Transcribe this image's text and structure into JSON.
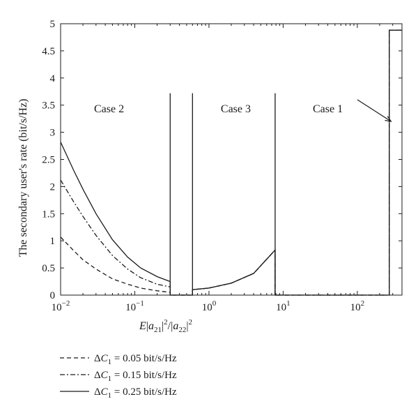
{
  "chart_data": {
    "type": "line",
    "title": "",
    "xlabel": "E|a21|^2/|a22|^2",
    "ylabel": "The secondary user's rate (bit/s/Hz)",
    "xscale": "log",
    "xlim": [
      0.01,
      400
    ],
    "ylim": [
      0,
      5
    ],
    "x_ticks": [
      {
        "value": 0.01,
        "base": "10",
        "exp": "−2"
      },
      {
        "value": 0.1,
        "base": "10",
        "exp": "−1"
      },
      {
        "value": 1,
        "base": "10",
        "exp": "0"
      },
      {
        "value": 10,
        "base": "10",
        "exp": "1"
      },
      {
        "value": 100,
        "base": "10",
        "exp": "2"
      }
    ],
    "y_ticks": [
      {
        "value": 0,
        "label": "0"
      },
      {
        "value": 0.5,
        "label": "0.5"
      },
      {
        "value": 1,
        "label": "1"
      },
      {
        "value": 1.5,
        "label": "1.5"
      },
      {
        "value": 2,
        "label": "2"
      },
      {
        "value": 2.5,
        "label": "2.5"
      },
      {
        "value": 3,
        "label": "3"
      },
      {
        "value": 3.5,
        "label": "3.5"
      },
      {
        "value": 4,
        "label": "4"
      },
      {
        "value": 4.5,
        "label": "4.5"
      },
      {
        "value": 5,
        "label": "5"
      }
    ],
    "grid": false,
    "legend_position": "below",
    "series": [
      {
        "name": "ΔC1 = 0.05 bit/s/Hz",
        "style": "dashed",
        "x": [
          0.01,
          0.015,
          0.02,
          0.03,
          0.05,
          0.08,
          0.12,
          0.2,
          0.3,
          0.3,
          0.6,
          0.6,
          1,
          2,
          4,
          7.8,
          7.8,
          270,
          270,
          400
        ],
        "y": [
          1.07,
          0.82,
          0.65,
          0.48,
          0.3,
          0.2,
          0.13,
          0.08,
          0.05,
          0.0,
          0.0,
          0.1,
          0.13,
          0.22,
          0.4,
          0.83,
          0.0,
          0.0,
          4.88,
          4.88
        ]
      },
      {
        "name": "ΔC1 = 0.15 bit/s/Hz",
        "style": "dashdot",
        "x": [
          0.01,
          0.015,
          0.02,
          0.03,
          0.05,
          0.08,
          0.12,
          0.2,
          0.3,
          0.3,
          0.6,
          0.6,
          1,
          2,
          4,
          7.8,
          7.8,
          270,
          270,
          400
        ],
        "y": [
          2.12,
          1.72,
          1.45,
          1.1,
          0.73,
          0.48,
          0.32,
          0.2,
          0.15,
          0.0,
          0.0,
          0.1,
          0.13,
          0.22,
          0.4,
          0.83,
          0.0,
          0.0,
          4.88,
          4.88
        ]
      },
      {
        "name": "ΔC1 = 0.25 bit/s/Hz",
        "style": "solid",
        "x": [
          0.01,
          0.015,
          0.02,
          0.03,
          0.05,
          0.08,
          0.12,
          0.2,
          0.3,
          0.3,
          0.6,
          0.6,
          1,
          2,
          4,
          7.8,
          7.8,
          270,
          270,
          400
        ],
        "y": [
          2.82,
          2.3,
          1.95,
          1.5,
          1.02,
          0.7,
          0.5,
          0.34,
          0.25,
          0.0,
          0.0,
          0.1,
          0.13,
          0.22,
          0.4,
          0.83,
          0.0,
          0.0,
          4.88,
          4.88
        ]
      }
    ],
    "boundaries": [
      {
        "x": 0.3,
        "y_top": 3.72
      },
      {
        "x": 0.6,
        "y_top": 3.72
      },
      {
        "x": 7.8,
        "y_top": 3.72
      }
    ],
    "annotations": [
      {
        "text": "Case 2",
        "x": 0.045,
        "y": 3.37
      },
      {
        "text": "Case 3",
        "x": 2.3,
        "y": 3.37
      },
      {
        "text": "Case 1",
        "x": 40,
        "y": 3.37
      }
    ],
    "arrow": {
      "from_x": 100,
      "from_y": 3.6,
      "to_x": 285,
      "to_y": 3.2
    }
  }
}
